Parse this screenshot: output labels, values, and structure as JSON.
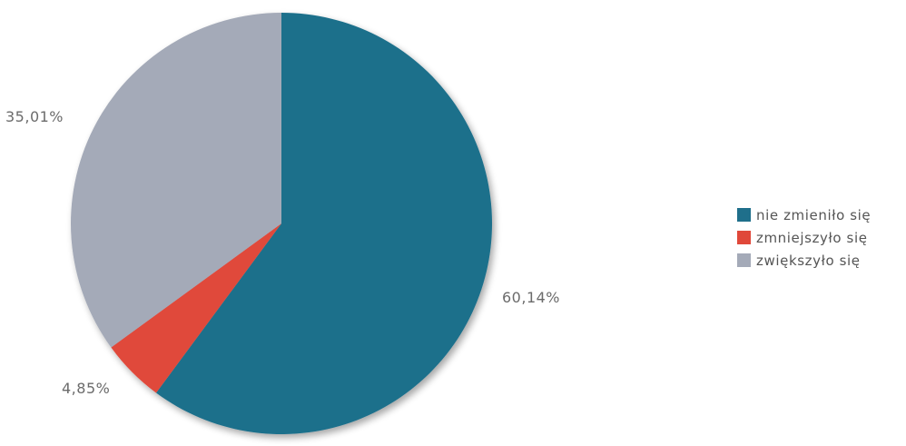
{
  "chart_data": {
    "type": "pie",
    "categories": [
      "nie zmieniło się",
      "zmniejszyło się",
      "zwiększyło się"
    ],
    "values": [
      60.14,
      4.85,
      35.01
    ],
    "labels": [
      "60,14%",
      "4,85%",
      "35,01%"
    ],
    "colors": [
      "#1f6f8b",
      "#e0483a",
      "#a4aab8"
    ],
    "start_angle": "top",
    "direction": "clockwise",
    "legend": "right"
  }
}
